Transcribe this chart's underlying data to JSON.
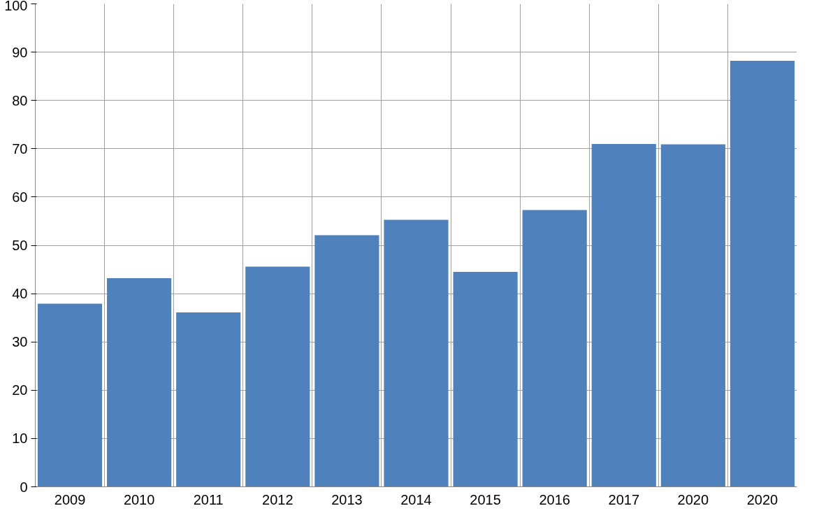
{
  "chart_data": {
    "type": "bar",
    "categories": [
      "2009",
      "2010",
      "2011",
      "2012",
      "2013",
      "2014",
      "2015",
      "2016",
      "2017",
      "2020",
      "2020"
    ],
    "values": [
      37.9,
      43.2,
      36.1,
      45.6,
      52.1,
      55.3,
      44.5,
      57.3,
      71.0,
      70.9,
      88.2
    ],
    "color": "#4f81bd",
    "ylim": [
      0,
      100
    ],
    "yticks": [
      0,
      10,
      20,
      30,
      40,
      50,
      60,
      70,
      80,
      90,
      100
    ],
    "grid": true
  }
}
